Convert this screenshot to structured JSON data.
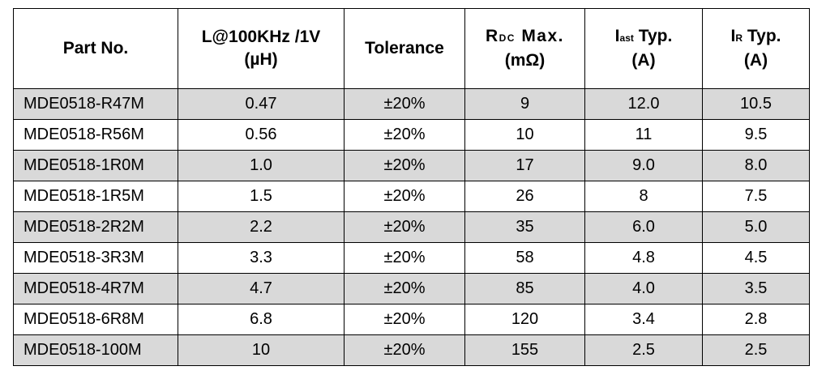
{
  "table": {
    "headers": {
      "part_no": "Part No.",
      "inductance_line1": "L@100KHz /1V",
      "inductance_line2": "(µH)",
      "tolerance": "Tolerance",
      "rdc_main": "R",
      "rdc_sub": "DC",
      "rdc_suffix": " Max.",
      "rdc_unit": "(mΩ)",
      "isat_main": "I",
      "isat_sub": "ast",
      "isat_suffix": " Typ.",
      "isat_unit": "(A)",
      "ir_main": "I",
      "ir_sub": "R",
      "ir_suffix": " Typ.",
      "ir_unit": "(A)"
    },
    "rows": [
      {
        "part": "MDE0518-R47M",
        "inductance": "0.47",
        "tolerance": "±20%",
        "rdc": "9",
        "isat": "12.0",
        "ir": "10.5"
      },
      {
        "part": "MDE0518-R56M",
        "inductance": "0.56",
        "tolerance": "±20%",
        "rdc": "10",
        "isat": "11",
        "ir": "9.5"
      },
      {
        "part": "MDE0518-1R0M",
        "inductance": "1.0",
        "tolerance": "±20%",
        "rdc": "17",
        "isat": "9.0",
        "ir": "8.0"
      },
      {
        "part": "MDE0518-1R5M",
        "inductance": "1.5",
        "tolerance": "±20%",
        "rdc": "26",
        "isat": "8",
        "ir": "7.5"
      },
      {
        "part": "MDE0518-2R2M",
        "inductance": "2.2",
        "tolerance": "±20%",
        "rdc": "35",
        "isat": "6.0",
        "ir": "5.0"
      },
      {
        "part": "MDE0518-3R3M",
        "inductance": "3.3",
        "tolerance": "±20%",
        "rdc": "58",
        "isat": "4.8",
        "ir": "4.5"
      },
      {
        "part": "MDE0518-4R7M",
        "inductance": "4.7",
        "tolerance": "±20%",
        "rdc": "85",
        "isat": "4.0",
        "ir": "3.5"
      },
      {
        "part": "MDE0518-6R8M",
        "inductance": "6.8",
        "tolerance": "±20%",
        "rdc": "120",
        "isat": "3.4",
        "ir": "2.8"
      },
      {
        "part": "MDE0518-100M",
        "inductance": "10",
        "tolerance": "±20%",
        "rdc": "155",
        "isat": "2.5",
        "ir": "2.5"
      }
    ],
    "shade_color": "#d9d9d9"
  }
}
